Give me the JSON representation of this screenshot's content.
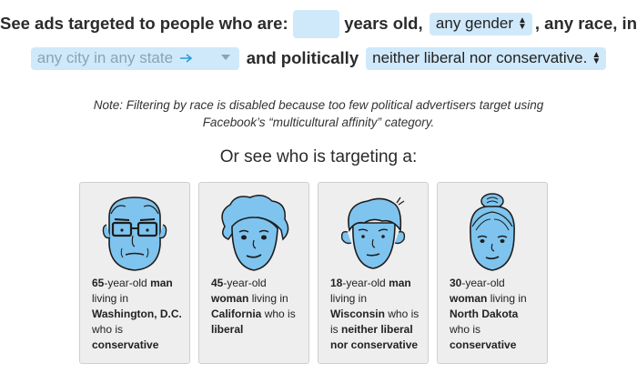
{
  "filter": {
    "prefix": "See ads targeted to people who are:",
    "age_value": "",
    "age_suffix": "years old,",
    "gender_value": "any gender",
    "race_text": ", any race, in",
    "city_placeholder": "any city in any state",
    "politics_prefix": "and politically",
    "politics_value": "neither liberal nor conservative."
  },
  "note": {
    "line1": "Note: Filtering by race is disabled because too few political advertisers target using",
    "line2": "Facebook’s “multicultural affinity” category."
  },
  "subhead": "Or see who is targeting a:",
  "cards": [
    {
      "age": "65",
      "gender": "man",
      "location": "Washington, D.C.",
      "politics": "conservative"
    },
    {
      "age": "45",
      "gender": "woman",
      "location": "California",
      "politics": "liberal"
    },
    {
      "age": "18",
      "gender": "man",
      "location": "Wisconsin",
      "politics": "neither liberal nor conservative"
    },
    {
      "age": "30",
      "gender": "woman",
      "location": "North Dakota",
      "politics": "conservative"
    }
  ],
  "card_text": {
    "age_suffix": "-year-old",
    "living_in": "living in",
    "who_is": "who is"
  },
  "colors": {
    "accent_light": "#cfe9fb",
    "face_fill": "#7ec4ee",
    "card_bg": "#eeeeee"
  }
}
